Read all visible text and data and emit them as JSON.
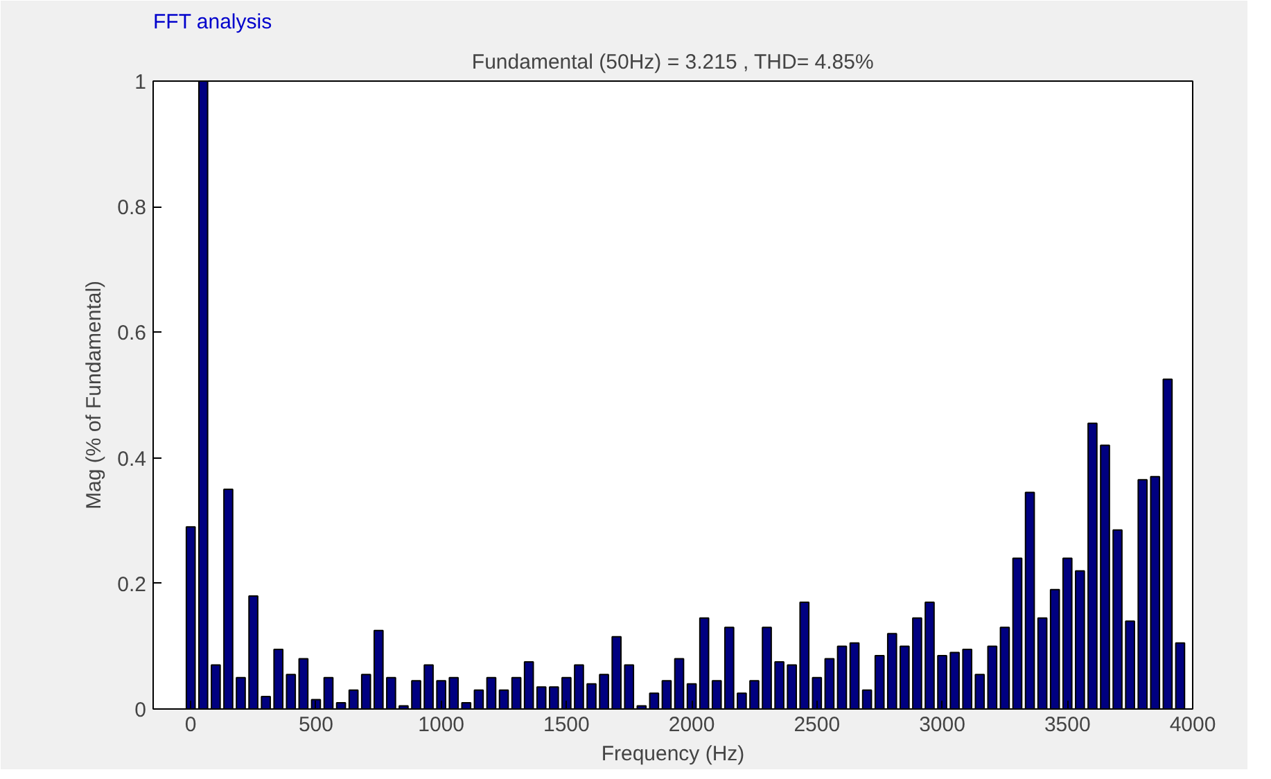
{
  "chart_data": {
    "type": "bar",
    "title": "FFT analysis",
    "subtitle": "Fundamental (50Hz) = 3.215 , THD= 4.85%",
    "xlabel": "Frequency (Hz)",
    "ylabel": "Mag (% of Fundamental)",
    "x": [
      0,
      50,
      100,
      150,
      200,
      250,
      300,
      350,
      400,
      450,
      500,
      550,
      600,
      650,
      700,
      750,
      800,
      850,
      900,
      950,
      1000,
      1050,
      1100,
      1150,
      1200,
      1250,
      1300,
      1350,
      1400,
      1450,
      1500,
      1550,
      1600,
      1650,
      1700,
      1750,
      1800,
      1850,
      1900,
      1950,
      2000,
      2050,
      2100,
      2150,
      2200,
      2250,
      2300,
      2350,
      2400,
      2450,
      2500,
      2550,
      2600,
      2650,
      2700,
      2750,
      2800,
      2850,
      2900,
      2950,
      3000,
      3050,
      3100,
      3150,
      3200,
      3250,
      3300,
      3350,
      3400,
      3450,
      3500,
      3550,
      3600,
      3650,
      3700,
      3750,
      3800,
      3850,
      3900,
      3950
    ],
    "values": [
      0.29,
      1,
      0.07,
      0.35,
      0.05,
      0.18,
      0.02,
      0.095,
      0.055,
      0.08,
      0.015,
      0.05,
      0.01,
      0.03,
      0.055,
      0.125,
      0.05,
      0.005,
      0.045,
      0.07,
      0.045,
      0.05,
      0.01,
      0.03,
      0.05,
      0.03,
      0.05,
      0.075,
      0.035,
      0.035,
      0.05,
      0.07,
      0.04,
      0.055,
      0.115,
      0.07,
      0.005,
      0.025,
      0.045,
      0.08,
      0.04,
      0.145,
      0.045,
      0.13,
      0.025,
      0.045,
      0.13,
      0.075,
      0.07,
      0.17,
      0.05,
      0.08,
      0.1,
      0.105,
      0.03,
      0.085,
      0.12,
      0.1,
      0.145,
      0.17,
      0.085,
      0.09,
      0.095,
      0.055,
      0.1,
      0.13,
      0.24,
      0.345,
      0.145,
      0.19,
      0.24,
      0.22,
      0.455,
      0.42,
      0.285,
      0.14,
      0.365,
      0.37,
      0.525,
      0.105
    ],
    "color": "#000080",
    "xlim": [
      -150,
      4000
    ],
    "xticks": [
      0,
      500,
      1000,
      1500,
      2000,
      2500,
      3000,
      3500,
      4000
    ],
    "ylim": [
      0,
      1
    ],
    "yticks": [
      0,
      0.2,
      0.4,
      0.6,
      0.8,
      1
    ],
    "grid": false
  }
}
